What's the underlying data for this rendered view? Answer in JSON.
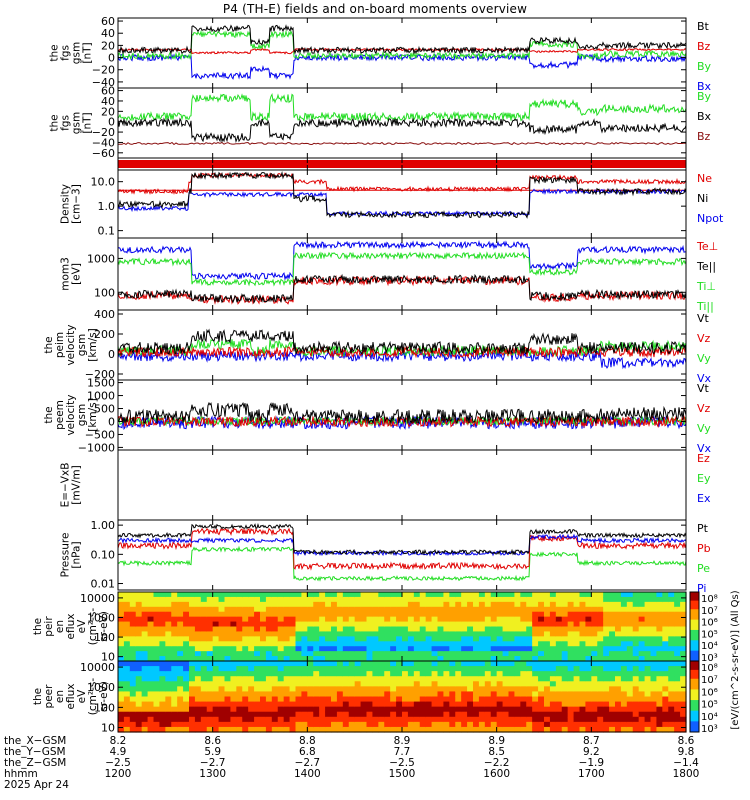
{
  "title": "P4 (TH-E) fields and on-board moments overview",
  "colorbar_label": "[eV/(cm^2-s-sr-eV)] (All Qs)",
  "colorbar_ticks": [
    "10⁸",
    "10⁷",
    "10⁶",
    "10⁵",
    "10⁴",
    "10³"
  ],
  "colors": {
    "black": "#000000",
    "red": "#e00000",
    "green": "#22dd22",
    "blue": "#0000ee",
    "darkred": "#8a1010"
  },
  "chart_data": [
    {
      "type": "line",
      "ylabel": [
        "the",
        "fgs",
        "gsm",
        "[nT]"
      ],
      "yticks": [
        "60",
        "40",
        "20",
        "0",
        "−20",
        "−40"
      ],
      "ylim": [
        -50,
        65
      ],
      "legend": [
        {
          "name": "Bt",
          "color": "black"
        },
        {
          "name": "Bz",
          "color": "red"
        },
        {
          "name": "By",
          "color": "green"
        },
        {
          "name": "Bx",
          "color": "blue"
        }
      ]
    },
    {
      "type": "line",
      "ylabel": [
        "the",
        "fgs",
        "gsm",
        "[nT]"
      ],
      "yticks": [
        "60",
        "40",
        "20",
        "0",
        "−20",
        "−40",
        "−60"
      ],
      "ylim": [
        -70,
        65
      ],
      "legend": [
        {
          "name": "By",
          "color": "green"
        },
        {
          "name": "Bx",
          "color": "black"
        },
        {
          "name": "Bz",
          "color": "darkred"
        }
      ]
    },
    {
      "type": "line",
      "ylabel": [],
      "yticks": [],
      "ylim": [
        0,
        1
      ],
      "legend": []
    },
    {
      "type": "line",
      "ylabel": [
        "Density",
        "[cm−3]"
      ],
      "yticks": [
        "10.0",
        "1.0",
        "0.1"
      ],
      "ylim": [
        0.05,
        30
      ],
      "log": true,
      "legend": [
        {
          "name": "Ne",
          "color": "red"
        },
        {
          "name": "Ni",
          "color": "black"
        },
        {
          "name": "Npot",
          "color": "blue"
        }
      ]
    },
    {
      "type": "line",
      "ylabel": [
        "mom3",
        "[eV]"
      ],
      "yticks": [
        "1000",
        "100"
      ],
      "ylim": [
        30,
        4000
      ],
      "log": true,
      "legend": [
        {
          "name": "Te⊥",
          "color": "red"
        },
        {
          "name": "Te||",
          "color": "black"
        },
        {
          "name": "Ti⊥",
          "color": "green"
        },
        {
          "name": "Ti||",
          "color": "green"
        }
      ]
    },
    {
      "type": "line",
      "ylabel": [
        "the",
        "peim",
        "velocity",
        "gsm",
        "[km/s]"
      ],
      "yticks": [
        "400",
        "200",
        "0",
        "−200"
      ],
      "ylim": [
        -260,
        440
      ],
      "legend": [
        {
          "name": "Vt",
          "color": "black"
        },
        {
          "name": "Vz",
          "color": "red"
        },
        {
          "name": "Vy",
          "color": "green"
        },
        {
          "name": "Vx",
          "color": "blue"
        }
      ]
    },
    {
      "type": "line",
      "ylabel": [
        "the",
        "peem",
        "velocity",
        "gsm",
        "[km/s]"
      ],
      "yticks": [
        "1500",
        "1000",
        "500",
        "0",
        "−500",
        "−1000"
      ],
      "ylim": [
        -1100,
        1600
      ],
      "legend": [
        {
          "name": "Vt",
          "color": "black"
        },
        {
          "name": "Vz",
          "color": "red"
        },
        {
          "name": "Vy",
          "color": "green"
        },
        {
          "name": "Vx",
          "color": "blue"
        }
      ]
    },
    {
      "type": "line",
      "ylabel": [
        "E=−VxB",
        "[mV/m]"
      ],
      "yticks": [],
      "ylim": [
        0,
        1
      ],
      "legend": [
        {
          "name": "Ez",
          "color": "red"
        },
        {
          "name": "Ey",
          "color": "green"
        },
        {
          "name": "Ex",
          "color": "blue"
        }
      ]
    },
    {
      "type": "line",
      "ylabel": [
        "Pressure",
        "[nPa]"
      ],
      "yticks": [
        "1.00",
        "0.10",
        "0.01"
      ],
      "ylim": [
        0.006,
        1.5
      ],
      "log": true,
      "legend": [
        {
          "name": "Pt",
          "color": "black"
        },
        {
          "name": "Pb",
          "color": "red"
        },
        {
          "name": "Pe",
          "color": "green"
        },
        {
          "name": "Pi",
          "color": "blue"
        }
      ]
    },
    {
      "type": "heatmap",
      "ylabel": [
        "the",
        "peir",
        "en",
        "eflux",
        "eV",
        "(cm²-s-",
        "sr-eV)"
      ],
      "yticks": [
        "10000",
        "1000",
        "100",
        "10"
      ]
    },
    {
      "type": "heatmap",
      "ylabel": [
        "the",
        "peer",
        "en",
        "eflux",
        "eV",
        "(cm²-s-",
        "sr-eV)"
      ],
      "yticks": [
        "10000",
        "1000",
        "100",
        "10"
      ]
    }
  ],
  "footer_labels": [
    "the_X−GSM",
    "the_Y−GSM",
    "the_Z−GSM",
    "hhmm",
    "2025 Apr 24"
  ],
  "footer_columns": [
    {
      "x": "8.2",
      "y": "4.9",
      "z": "−2.5",
      "t": "1200"
    },
    {
      "x": "8.6",
      "y": "5.9",
      "z": "−2.7",
      "t": "1300"
    },
    {
      "x": "8.8",
      "y": "6.8",
      "z": "−2.7",
      "t": "1400"
    },
    {
      "x": "8.9",
      "y": "7.7",
      "z": "−2.5",
      "t": "1500"
    },
    {
      "x": "8.9",
      "y": "8.5",
      "z": "−2.2",
      "t": "1600"
    },
    {
      "x": "8.7",
      "y": "9.2",
      "z": "−1.9",
      "t": "1700"
    },
    {
      "x": "8.6",
      "y": "9.8",
      "z": "−1.4",
      "t": "1800"
    }
  ]
}
